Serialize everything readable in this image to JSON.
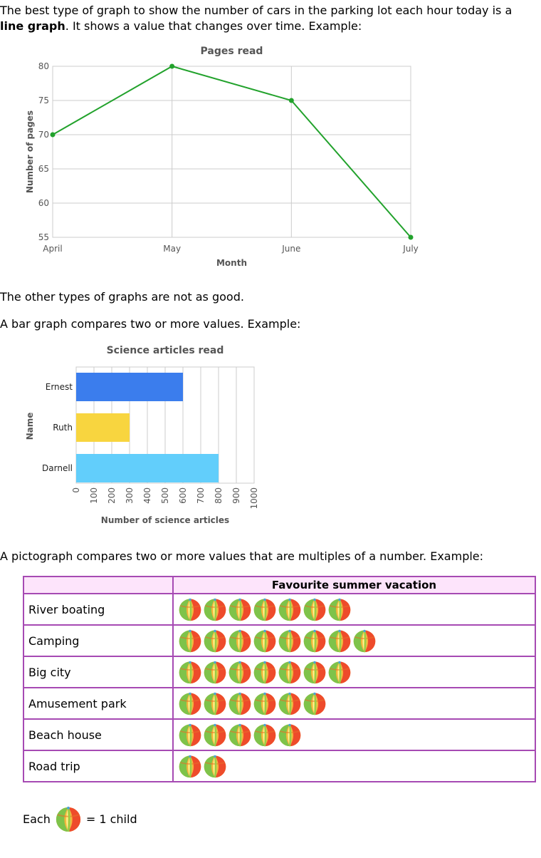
{
  "intro": {
    "part1": "The best type of graph to show the number of cars in the parking lot each hour today is a",
    "bold": "line graph",
    "part2": ". It shows a value that changes over time. Example:"
  },
  "other_text": "The other types of graphs are not as good.",
  "bar_text": "A bar graph compares two or more values. Example:",
  "picto_text": "A pictograph compares two or more values that are multiples of a number. Example:",
  "chart_data": [
    {
      "type": "line",
      "title": "Pages read",
      "xlabel": "Month",
      "ylabel": "Number of pages",
      "categories": [
        "April",
        "May",
        "June",
        "July"
      ],
      "values": [
        70,
        80,
        75,
        55
      ],
      "ylim": [
        55,
        80
      ],
      "yticks": [
        55,
        60,
        65,
        70,
        75,
        80
      ],
      "grid": true,
      "color": "#22a22c"
    },
    {
      "type": "bar",
      "orientation": "horizontal",
      "title": "Science articles read",
      "xlabel": "Number of science articles",
      "ylabel": "Name",
      "categories": [
        "Ernest",
        "Ruth",
        "Darnell"
      ],
      "values": [
        600,
        300,
        800
      ],
      "colors": [
        "#3b7ded",
        "#f8d53f",
        "#62cefb"
      ],
      "xlim": [
        0,
        1000
      ],
      "xticks": [
        0,
        100,
        200,
        300,
        400,
        500,
        600,
        700,
        800,
        900,
        1000
      ],
      "grid": true
    }
  ],
  "pictograph": {
    "title": "Favourite summer vacation",
    "rows": [
      {
        "label": "River boating",
        "count": 7
      },
      {
        "label": "Camping",
        "count": 8
      },
      {
        "label": "Big city",
        "count": 7
      },
      {
        "label": "Amusement park",
        "count": 6
      },
      {
        "label": "Beach house",
        "count": 5
      },
      {
        "label": "Road trip",
        "count": 2
      }
    ],
    "icon": "beach-ball-icon",
    "key_each": "Each",
    "key_value": "= 1 child"
  }
}
